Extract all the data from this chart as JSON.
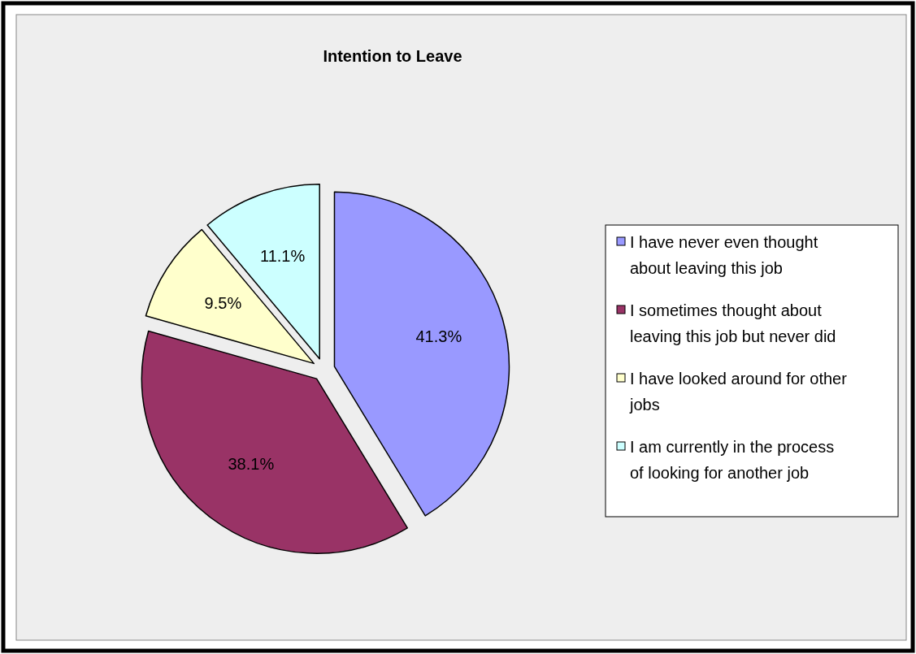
{
  "chart_data": {
    "type": "pie",
    "title": "Intention to Leave",
    "categories": [
      "I have never even thought about leaving this job",
      "I sometimes thought about leaving this job but never did",
      "I have looked around for other jobs",
      "I am currently in the process of looking for another job"
    ],
    "values": [
      41.3,
      38.1,
      9.5,
      11.1
    ],
    "colors": [
      "#9999ff",
      "#993366",
      "#ffffcc",
      "#ccffff"
    ],
    "value_labels": [
      "41.3%",
      "38.1%",
      "9.5%",
      "11.1%"
    ],
    "legend": "right"
  }
}
